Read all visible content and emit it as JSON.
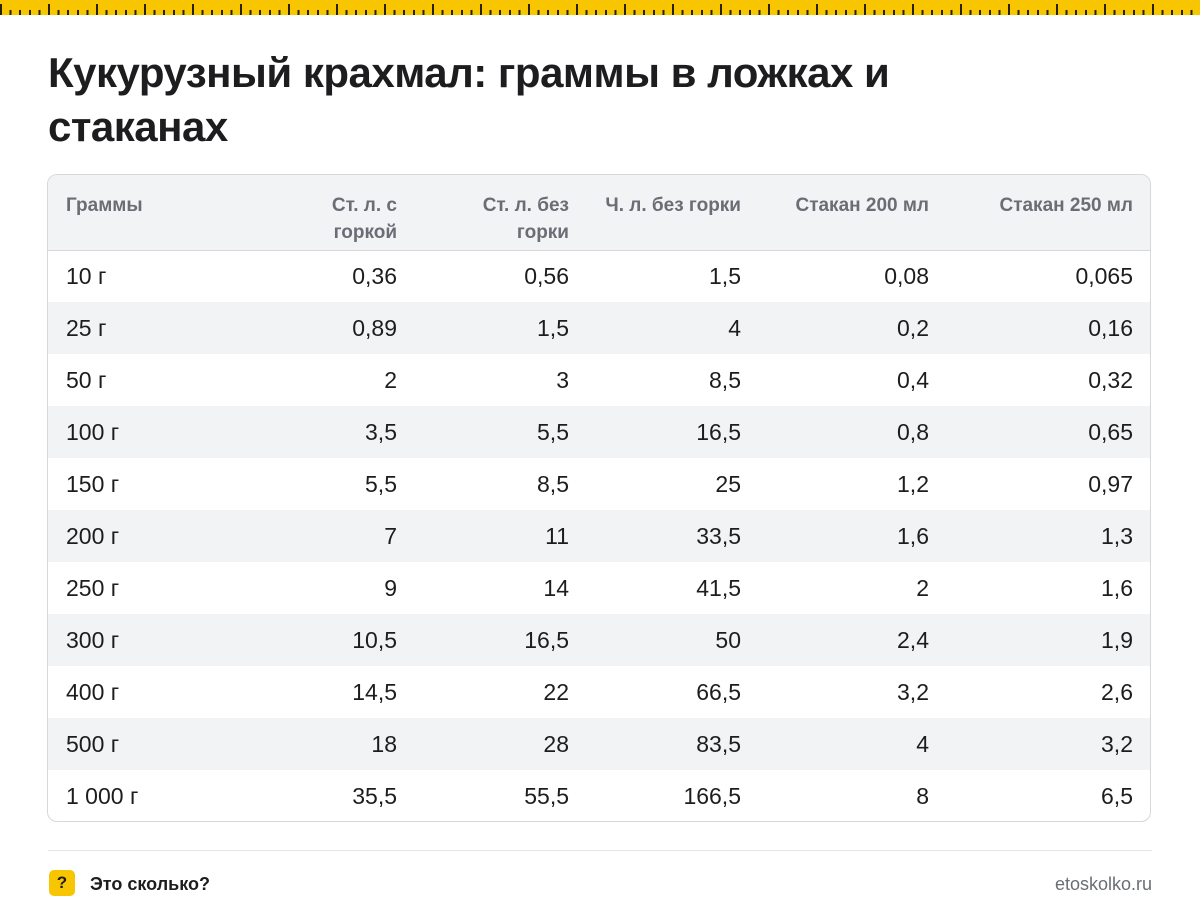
{
  "title": "Кукурузный крахмал: граммы в ложках и стаканах",
  "table": {
    "headers": [
      "Граммы",
      "Ст. л. с горкой",
      "Ст. л. без горки",
      "Ч. л. без горки",
      "Стакан 200 мл",
      "Стакан 250 мл"
    ],
    "rows": [
      [
        "10 г",
        "0,36",
        "0,56",
        "1,5",
        "0,08",
        "0,065"
      ],
      [
        "25 г",
        "0,89",
        "1,5",
        "4",
        "0,2",
        "0,16"
      ],
      [
        "50 г",
        "2",
        "3",
        "8,5",
        "0,4",
        "0,32"
      ],
      [
        "100 г",
        "3,5",
        "5,5",
        "16,5",
        "0,8",
        "0,65"
      ],
      [
        "150 г",
        "5,5",
        "8,5",
        "25",
        "1,2",
        "0,97"
      ],
      [
        "200 г",
        "7",
        "11",
        "33,5",
        "1,6",
        "1,3"
      ],
      [
        "250 г",
        "9",
        "14",
        "41,5",
        "2",
        "1,6"
      ],
      [
        "300 г",
        "10,5",
        "16,5",
        "50",
        "2,4",
        "1,9"
      ],
      [
        "400 г",
        "14,5",
        "22",
        "66,5",
        "3,2",
        "2,6"
      ],
      [
        "500 г",
        "18",
        "28",
        "83,5",
        "4",
        "3,2"
      ],
      [
        "1 000 г",
        "35,5",
        "55,5",
        "166,5",
        "8",
        "6,5"
      ]
    ]
  },
  "footer": {
    "badge": "?",
    "brand": "Это сколько?",
    "site": "etoskolko.ru"
  },
  "colors": {
    "accent": "#f7c600",
    "header_bg": "#f1f3f5",
    "header_text": "#6a6e74"
  }
}
